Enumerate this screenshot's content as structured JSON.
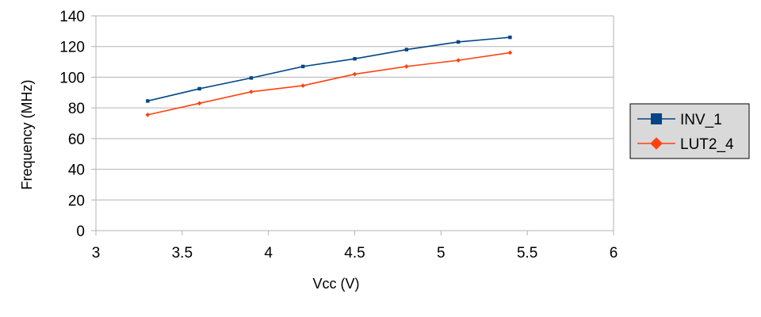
{
  "chart_data": {
    "type": "line",
    "title": "",
    "xlabel": "Vcc (V)",
    "ylabel": "Frequency (MHz)",
    "xlim": [
      3,
      6
    ],
    "ylim": [
      0,
      140
    ],
    "x_ticks": [
      3,
      3.5,
      4,
      4.5,
      5,
      5.5,
      6
    ],
    "x_tick_labels": [
      "3",
      "3.5",
      "4",
      "4.5",
      "5",
      "5.5",
      "6"
    ],
    "y_ticks": [
      0,
      20,
      40,
      60,
      80,
      100,
      120,
      140
    ],
    "y_tick_labels": [
      "0",
      "20",
      "40",
      "60",
      "80",
      "100",
      "120",
      "140"
    ],
    "grid": "horizontal",
    "legend_position": "right",
    "x": [
      3.3,
      3.6,
      3.9,
      4.2,
      4.5,
      4.8,
      5.1,
      5.4
    ],
    "series": [
      {
        "name": "INV_1",
        "color": "#004586",
        "marker": "square",
        "values": [
          84.5,
          92.5,
          99.5,
          107,
          112,
          118,
          123,
          126
        ]
      },
      {
        "name": "LUT2_4",
        "color": "#ff420e",
        "marker": "diamond",
        "values": [
          75.5,
          83,
          90.5,
          94.5,
          102,
          107,
          111,
          116
        ]
      }
    ]
  }
}
